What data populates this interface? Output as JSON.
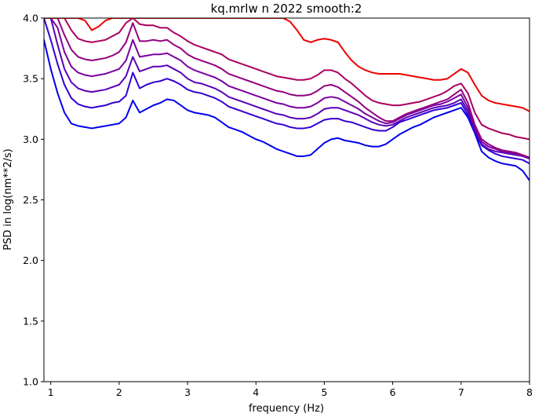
{
  "chart_data": {
    "type": "line",
    "title": "kq.mrlw n 2022 smooth:2",
    "xlabel": "frequency (Hz)",
    "ylabel": "PSD in log(nm**2/s)",
    "xlim": [
      0.9,
      8.0
    ],
    "ylim": [
      1.0,
      4.0
    ],
    "x_ticks": [
      1,
      2,
      3,
      4,
      5,
      6,
      7,
      8
    ],
    "y_ticks": [
      1.0,
      1.5,
      2.0,
      2.5,
      3.0,
      3.5,
      4.0
    ],
    "x_tick_labels": [
      "1",
      "2",
      "3",
      "4",
      "5",
      "6",
      "7",
      "8"
    ],
    "y_tick_labels": [
      "1.0",
      "1.5",
      "2.0",
      "2.5",
      "3.0",
      "3.5",
      "4.0"
    ],
    "grid": false,
    "legend": false,
    "x": [
      0.9,
      1.0,
      1.1,
      1.2,
      1.3,
      1.4,
      1.5,
      1.6,
      1.7,
      1.8,
      1.9,
      2.0,
      2.1,
      2.2,
      2.3,
      2.4,
      2.5,
      2.6,
      2.7,
      2.8,
      2.9,
      3.0,
      3.1,
      3.2,
      3.3,
      3.4,
      3.5,
      3.6,
      3.7,
      3.8,
      3.9,
      4.0,
      4.1,
      4.2,
      4.3,
      4.4,
      4.5,
      4.6,
      4.7,
      4.8,
      4.9,
      5.0,
      5.1,
      5.2,
      5.3,
      5.4,
      5.5,
      5.6,
      5.7,
      5.8,
      5.9,
      6.0,
      6.1,
      6.2,
      6.3,
      6.4,
      6.5,
      6.6,
      6.7,
      6.8,
      6.9,
      7.0,
      7.1,
      7.2,
      7.3,
      7.4,
      7.5,
      7.6,
      7.7,
      7.8,
      7.9,
      8.0
    ],
    "series": [
      {
        "color": "#0000ee",
        "values": [
          3.82,
          3.58,
          3.38,
          3.22,
          3.13,
          3.11,
          3.1,
          3.09,
          3.1,
          3.11,
          3.12,
          3.13,
          3.18,
          3.32,
          3.22,
          3.25,
          3.28,
          3.3,
          3.33,
          3.32,
          3.28,
          3.24,
          3.22,
          3.21,
          3.2,
          3.18,
          3.14,
          3.1,
          3.08,
          3.06,
          3.03,
          3.0,
          2.98,
          2.95,
          2.92,
          2.9,
          2.88,
          2.86,
          2.86,
          2.87,
          2.92,
          2.97,
          3.0,
          3.01,
          2.99,
          2.98,
          2.97,
          2.95,
          2.94,
          2.94,
          2.96,
          3.0,
          3.04,
          3.07,
          3.1,
          3.12,
          3.15,
          3.18,
          3.2,
          3.22,
          3.24,
          3.26,
          3.18,
          3.05,
          2.9,
          2.85,
          2.82,
          2.8,
          2.79,
          2.78,
          2.74,
          2.66
        ]
      },
      {
        "color": "#3300d4",
        "values": [
          4.0,
          3.82,
          3.62,
          3.45,
          3.34,
          3.29,
          3.27,
          3.26,
          3.27,
          3.28,
          3.3,
          3.31,
          3.36,
          3.55,
          3.42,
          3.45,
          3.47,
          3.48,
          3.5,
          3.48,
          3.45,
          3.41,
          3.39,
          3.38,
          3.36,
          3.34,
          3.31,
          3.27,
          3.25,
          3.23,
          3.21,
          3.19,
          3.17,
          3.15,
          3.13,
          3.12,
          3.1,
          3.09,
          3.09,
          3.1,
          3.13,
          3.16,
          3.17,
          3.17,
          3.15,
          3.14,
          3.12,
          3.1,
          3.08,
          3.07,
          3.07,
          3.1,
          3.14,
          3.16,
          3.18,
          3.2,
          3.22,
          3.24,
          3.25,
          3.26,
          3.28,
          3.3,
          3.2,
          3.06,
          2.95,
          2.91,
          2.88,
          2.86,
          2.85,
          2.84,
          2.83,
          2.8
        ]
      },
      {
        "color": "#5a00b8",
        "values": [
          4.0,
          4.0,
          3.78,
          3.58,
          3.47,
          3.42,
          3.4,
          3.39,
          3.4,
          3.41,
          3.43,
          3.45,
          3.52,
          3.68,
          3.56,
          3.58,
          3.6,
          3.6,
          3.61,
          3.58,
          3.55,
          3.5,
          3.47,
          3.46,
          3.44,
          3.42,
          3.39,
          3.35,
          3.33,
          3.31,
          3.29,
          3.27,
          3.25,
          3.23,
          3.21,
          3.2,
          3.18,
          3.17,
          3.17,
          3.18,
          3.21,
          3.25,
          3.26,
          3.26,
          3.24,
          3.22,
          3.2,
          3.17,
          3.14,
          3.12,
          3.11,
          3.12,
          3.15,
          3.18,
          3.2,
          3.22,
          3.24,
          3.26,
          3.27,
          3.28,
          3.3,
          3.33,
          3.23,
          3.08,
          2.96,
          2.92,
          2.9,
          2.89,
          2.88,
          2.87,
          2.86,
          2.84
        ]
      },
      {
        "color": "#7a00a0",
        "values": [
          4.0,
          4.0,
          3.92,
          3.72,
          3.6,
          3.55,
          3.53,
          3.52,
          3.53,
          3.54,
          3.56,
          3.58,
          3.65,
          3.82,
          3.68,
          3.69,
          3.7,
          3.7,
          3.71,
          3.68,
          3.65,
          3.6,
          3.57,
          3.55,
          3.53,
          3.51,
          3.48,
          3.44,
          3.42,
          3.4,
          3.38,
          3.36,
          3.34,
          3.32,
          3.3,
          3.29,
          3.27,
          3.26,
          3.26,
          3.27,
          3.3,
          3.34,
          3.35,
          3.34,
          3.31,
          3.28,
          3.25,
          3.21,
          3.18,
          3.15,
          3.13,
          3.14,
          3.17,
          3.2,
          3.22,
          3.24,
          3.26,
          3.28,
          3.29,
          3.31,
          3.34,
          3.37,
          3.26,
          3.1,
          2.98,
          2.94,
          2.92,
          2.9,
          2.89,
          2.88,
          2.86,
          2.85
        ]
      },
      {
        "color": "#92007e",
        "values": [
          4.0,
          4.0,
          4.0,
          3.86,
          3.74,
          3.68,
          3.66,
          3.65,
          3.66,
          3.67,
          3.69,
          3.72,
          3.8,
          3.96,
          3.81,
          3.81,
          3.82,
          3.81,
          3.82,
          3.78,
          3.75,
          3.7,
          3.67,
          3.65,
          3.63,
          3.61,
          3.58,
          3.54,
          3.52,
          3.5,
          3.48,
          3.46,
          3.44,
          3.42,
          3.4,
          3.39,
          3.37,
          3.36,
          3.36,
          3.37,
          3.4,
          3.44,
          3.45,
          3.43,
          3.39,
          3.35,
          3.31,
          3.26,
          3.22,
          3.18,
          3.15,
          3.15,
          3.18,
          3.21,
          3.23,
          3.25,
          3.27,
          3.29,
          3.31,
          3.33,
          3.37,
          3.41,
          3.3,
          3.12,
          3.0,
          2.96,
          2.93,
          2.91,
          2.9,
          2.89,
          2.87,
          2.85
        ]
      },
      {
        "color": "#aa0060",
        "values": [
          4.0,
          4.0,
          4.0,
          4.0,
          3.9,
          3.83,
          3.81,
          3.8,
          3.81,
          3.82,
          3.85,
          3.88,
          3.96,
          4.0,
          3.95,
          3.94,
          3.94,
          3.92,
          3.92,
          3.88,
          3.85,
          3.81,
          3.78,
          3.76,
          3.74,
          3.72,
          3.7,
          3.66,
          3.64,
          3.62,
          3.6,
          3.58,
          3.56,
          3.54,
          3.52,
          3.51,
          3.5,
          3.49,
          3.49,
          3.5,
          3.53,
          3.57,
          3.57,
          3.55,
          3.5,
          3.46,
          3.41,
          3.36,
          3.32,
          3.3,
          3.29,
          3.28,
          3.28,
          3.29,
          3.3,
          3.31,
          3.33,
          3.35,
          3.37,
          3.4,
          3.44,
          3.46,
          3.38,
          3.22,
          3.12,
          3.09,
          3.07,
          3.05,
          3.04,
          3.02,
          3.01,
          3.0
        ]
      },
      {
        "color": "#ee0000",
        "values": [
          4.0,
          4.0,
          4.0,
          4.0,
          4.0,
          4.0,
          3.98,
          3.9,
          3.93,
          3.98,
          4.0,
          4.0,
          4.0,
          4.0,
          4.0,
          4.0,
          4.0,
          4.0,
          4.0,
          4.0,
          4.0,
          4.0,
          4.0,
          4.0,
          4.0,
          4.0,
          4.0,
          4.0,
          4.0,
          4.0,
          4.0,
          4.0,
          4.0,
          4.0,
          4.0,
          4.0,
          3.97,
          3.9,
          3.82,
          3.8,
          3.82,
          3.83,
          3.82,
          3.8,
          3.72,
          3.65,
          3.6,
          3.57,
          3.55,
          3.54,
          3.54,
          3.54,
          3.54,
          3.53,
          3.52,
          3.51,
          3.5,
          3.49,
          3.49,
          3.5,
          3.54,
          3.58,
          3.55,
          3.45,
          3.36,
          3.32,
          3.3,
          3.29,
          3.28,
          3.27,
          3.26,
          3.23
        ]
      }
    ]
  }
}
